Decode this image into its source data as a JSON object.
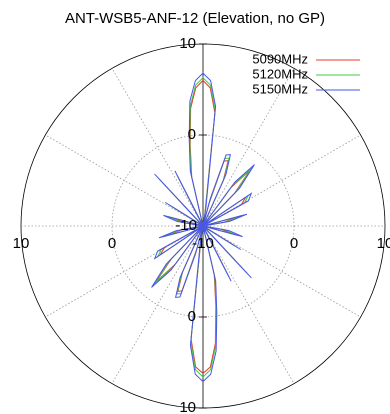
{
  "chart_data": {
    "type": "polar-line",
    "title": "ANT-WSB5-ANF-12 (Elevation, no GP)",
    "radial_range": [
      -10,
      10
    ],
    "radial_ticks": [
      -10,
      0,
      10
    ],
    "radial_tick_labels": [
      "-10",
      "0",
      "10"
    ],
    "angular_step_deg": 30,
    "grid": true,
    "legend_position": "top-right",
    "series": [
      {
        "name": "5090MHz",
        "color": "#e8392c",
        "points": [
          [
            0,
            6.0
          ],
          [
            3,
            5.2
          ],
          [
            6,
            2.5
          ],
          [
            9,
            -8.8
          ],
          [
            12,
            -9.9
          ],
          [
            15,
            -7.5
          ],
          [
            18,
            -2.5
          ],
          [
            21,
            -2.3
          ],
          [
            24,
            -4.5
          ],
          [
            27,
            -9.9
          ],
          [
            33,
            -9.9
          ],
          [
            36,
            -4.8
          ],
          [
            40,
            -2.0
          ],
          [
            44,
            -5.0
          ],
          [
            47,
            -9.9
          ],
          [
            52,
            -9.9
          ],
          [
            56,
            -4.3
          ],
          [
            61,
            -5.2
          ],
          [
            65,
            -9.9
          ],
          [
            70,
            -9.9
          ],
          [
            75,
            -5.7
          ],
          [
            80,
            -7.7
          ],
          [
            84,
            -9.9
          ],
          [
            96,
            -9.9
          ],
          [
            100,
            -8.0
          ],
          [
            105,
            -6.3
          ],
          [
            110,
            -9.9
          ],
          [
            118,
            -9.9
          ],
          [
            122,
            -6.0
          ],
          [
            127,
            -9.9
          ],
          [
            133,
            -9.9
          ],
          [
            137,
            -3.0
          ],
          [
            142,
            -9.9
          ],
          [
            148,
            -9.9
          ],
          [
            153,
            -4.0
          ],
          [
            158,
            -9.9
          ],
          [
            163,
            -9.9
          ],
          [
            167,
            -4.5
          ],
          [
            171,
            -1.0
          ],
          [
            174,
            3.0
          ],
          [
            177,
            5.5
          ],
          [
            180,
            6.2
          ],
          [
            183,
            5.5
          ],
          [
            186,
            2.5
          ],
          [
            189,
            -8.8
          ],
          [
            192,
            -9.9
          ],
          [
            195,
            -7.5
          ],
          [
            198,
            -2.5
          ],
          [
            201,
            -2.3
          ],
          [
            204,
            -4.5
          ],
          [
            207,
            -9.9
          ],
          [
            213,
            -9.9
          ],
          [
            216,
            -4.8
          ],
          [
            220,
            -2.0
          ],
          [
            224,
            -5.0
          ],
          [
            227,
            -9.9
          ],
          [
            232,
            -9.9
          ],
          [
            236,
            -4.3
          ],
          [
            241,
            -5.2
          ],
          [
            245,
            -9.9
          ],
          [
            250,
            -9.9
          ],
          [
            255,
            -5.7
          ],
          [
            260,
            -7.7
          ],
          [
            264,
            -9.9
          ],
          [
            276,
            -9.9
          ],
          [
            280,
            -8.0
          ],
          [
            285,
            -6.3
          ],
          [
            290,
            -9.9
          ],
          [
            298,
            -9.9
          ],
          [
            302,
            -6.0
          ],
          [
            307,
            -9.9
          ],
          [
            313,
            -9.9
          ],
          [
            317,
            -3.0
          ],
          [
            322,
            -9.9
          ],
          [
            328,
            -9.9
          ],
          [
            333,
            -4.0
          ],
          [
            338,
            -9.9
          ],
          [
            343,
            -9.9
          ],
          [
            347,
            -4.5
          ],
          [
            351,
            -1.0
          ],
          [
            354,
            3.0
          ],
          [
            357,
            5.2
          ],
          [
            360,
            6.0
          ]
        ]
      },
      {
        "name": "5120MHz",
        "color": "#43c943",
        "points": [
          [
            0,
            6.3
          ],
          [
            3,
            5.5
          ],
          [
            6,
            2.8
          ],
          [
            9,
            -8.5
          ],
          [
            12,
            -9.9
          ],
          [
            15,
            -7.2
          ],
          [
            18,
            -2.2
          ],
          [
            21,
            -2.0
          ],
          [
            24,
            -4.2
          ],
          [
            27,
            -9.9
          ],
          [
            33,
            -9.9
          ],
          [
            36,
            -4.5
          ],
          [
            40,
            -1.7
          ],
          [
            44,
            -4.7
          ],
          [
            47,
            -9.9
          ],
          [
            52,
            -9.9
          ],
          [
            56,
            -4.0
          ],
          [
            61,
            -4.8
          ],
          [
            65,
            -9.9
          ],
          [
            70,
            -9.9
          ],
          [
            75,
            -5.4
          ],
          [
            80,
            -7.4
          ],
          [
            84,
            -9.9
          ],
          [
            96,
            -9.9
          ],
          [
            100,
            -7.6
          ],
          [
            105,
            -6.0
          ],
          [
            110,
            -9.9
          ],
          [
            118,
            -9.9
          ],
          [
            122,
            -5.6
          ],
          [
            127,
            -9.9
          ],
          [
            133,
            -9.9
          ],
          [
            137,
            -2.7
          ],
          [
            142,
            -9.9
          ],
          [
            148,
            -9.9
          ],
          [
            153,
            -3.7
          ],
          [
            158,
            -9.9
          ],
          [
            163,
            -9.9
          ],
          [
            167,
            -4.2
          ],
          [
            171,
            -0.7
          ],
          [
            174,
            3.3
          ],
          [
            177,
            5.8
          ],
          [
            180,
            6.6
          ],
          [
            183,
            5.8
          ],
          [
            186,
            2.8
          ],
          [
            189,
            -8.5
          ],
          [
            192,
            -9.9
          ],
          [
            195,
            -7.2
          ],
          [
            198,
            -2.2
          ],
          [
            201,
            -2.0
          ],
          [
            204,
            -4.2
          ],
          [
            207,
            -9.9
          ],
          [
            213,
            -9.9
          ],
          [
            216,
            -4.5
          ],
          [
            220,
            -1.7
          ],
          [
            224,
            -4.7
          ],
          [
            227,
            -9.9
          ],
          [
            232,
            -9.9
          ],
          [
            236,
            -4.0
          ],
          [
            241,
            -4.8
          ],
          [
            245,
            -9.9
          ],
          [
            250,
            -9.9
          ],
          [
            255,
            -5.4
          ],
          [
            260,
            -7.4
          ],
          [
            264,
            -9.9
          ],
          [
            276,
            -9.9
          ],
          [
            280,
            -7.6
          ],
          [
            285,
            -6.0
          ],
          [
            290,
            -9.9
          ],
          [
            298,
            -9.9
          ],
          [
            302,
            -5.6
          ],
          [
            307,
            -9.9
          ],
          [
            313,
            -9.9
          ],
          [
            317,
            -2.7
          ],
          [
            322,
            -9.9
          ],
          [
            328,
            -9.9
          ],
          [
            333,
            -3.7
          ],
          [
            338,
            -9.9
          ],
          [
            343,
            -9.9
          ],
          [
            347,
            -4.2
          ],
          [
            351,
            -0.7
          ],
          [
            354,
            3.3
          ],
          [
            357,
            5.5
          ],
          [
            360,
            6.3
          ]
        ]
      },
      {
        "name": "5150MHz",
        "color": "#4a56e8",
        "points": [
          [
            0,
            6.8
          ],
          [
            3,
            6.0
          ],
          [
            6,
            3.2
          ],
          [
            9,
            -8.0
          ],
          [
            12,
            -9.9
          ],
          [
            15,
            -6.8
          ],
          [
            18,
            -1.8
          ],
          [
            21,
            -1.6
          ],
          [
            24,
            -3.8
          ],
          [
            27,
            -9.9
          ],
          [
            33,
            -9.9
          ],
          [
            36,
            -4.0
          ],
          [
            40,
            -1.2
          ],
          [
            44,
            -4.2
          ],
          [
            47,
            -9.9
          ],
          [
            52,
            -9.9
          ],
          [
            56,
            -3.6
          ],
          [
            61,
            -4.3
          ],
          [
            65,
            -9.9
          ],
          [
            70,
            -9.9
          ],
          [
            75,
            -5.0
          ],
          [
            80,
            -7.0
          ],
          [
            84,
            -9.9
          ],
          [
            96,
            -9.9
          ],
          [
            100,
            -7.1
          ],
          [
            105,
            -5.5
          ],
          [
            110,
            -9.9
          ],
          [
            118,
            -9.9
          ],
          [
            122,
            -5.1
          ],
          [
            127,
            -9.9
          ],
          [
            133,
            -9.9
          ],
          [
            137,
            -2.2
          ],
          [
            142,
            -9.9
          ],
          [
            148,
            -9.9
          ],
          [
            153,
            -3.2
          ],
          [
            158,
            -9.9
          ],
          [
            163,
            -9.9
          ],
          [
            167,
            -3.8
          ],
          [
            171,
            -0.3
          ],
          [
            174,
            3.8
          ],
          [
            177,
            6.3
          ],
          [
            180,
            7.1
          ],
          [
            183,
            6.3
          ],
          [
            186,
            3.2
          ],
          [
            189,
            -8.0
          ],
          [
            192,
            -9.9
          ],
          [
            195,
            -6.8
          ],
          [
            198,
            -1.8
          ],
          [
            201,
            -1.6
          ],
          [
            204,
            -3.8
          ],
          [
            207,
            -9.9
          ],
          [
            213,
            -9.9
          ],
          [
            216,
            -4.0
          ],
          [
            220,
            -1.2
          ],
          [
            224,
            -4.2
          ],
          [
            227,
            -9.9
          ],
          [
            232,
            -9.9
          ],
          [
            236,
            -3.6
          ],
          [
            241,
            -4.3
          ],
          [
            245,
            -9.9
          ],
          [
            250,
            -9.9
          ],
          [
            255,
            -5.0
          ],
          [
            260,
            -7.0
          ],
          [
            264,
            -9.9
          ],
          [
            276,
            -9.9
          ],
          [
            280,
            -7.1
          ],
          [
            285,
            -5.5
          ],
          [
            290,
            -9.9
          ],
          [
            298,
            -9.9
          ],
          [
            302,
            -5.1
          ],
          [
            307,
            -9.9
          ],
          [
            313,
            -9.9
          ],
          [
            317,
            -2.2
          ],
          [
            322,
            -9.9
          ],
          [
            328,
            -9.9
          ],
          [
            333,
            -3.2
          ],
          [
            338,
            -9.9
          ],
          [
            343,
            -9.9
          ],
          [
            347,
            -3.8
          ],
          [
            351,
            -0.3
          ],
          [
            354,
            3.8
          ],
          [
            357,
            6.0
          ],
          [
            360,
            6.8
          ]
        ]
      }
    ]
  }
}
